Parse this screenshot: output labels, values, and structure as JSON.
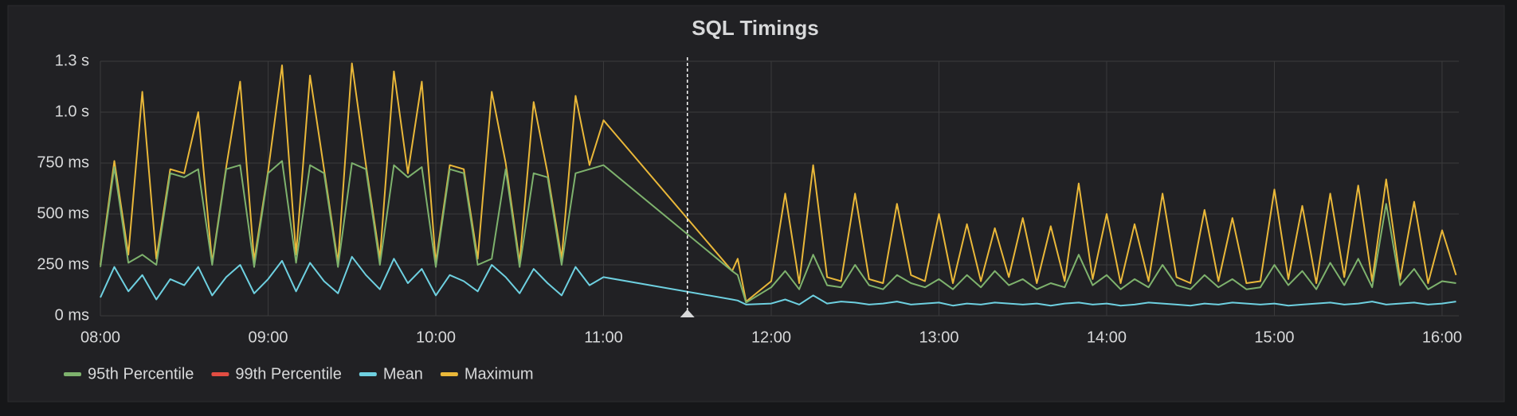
{
  "chart_data": {
    "type": "line",
    "title": "SQL Timings",
    "x": [
      480,
      485,
      490,
      495,
      500,
      505,
      510,
      515,
      520,
      525,
      530,
      535,
      540,
      545,
      550,
      555,
      560,
      565,
      570,
      575,
      580,
      585,
      590,
      595,
      600,
      605,
      610,
      615,
      620,
      625,
      630,
      635,
      640,
      645,
      650,
      655,
      660,
      706,
      708,
      711,
      720,
      725,
      730,
      735,
      740,
      745,
      750,
      755,
      760,
      765,
      770,
      775,
      780,
      785,
      790,
      795,
      800,
      805,
      810,
      815,
      820,
      825,
      830,
      835,
      840,
      845,
      850,
      855,
      860,
      865,
      870,
      875,
      880,
      885,
      890,
      895,
      900,
      905,
      910,
      915,
      920,
      925,
      930,
      935,
      940,
      945,
      950,
      955,
      960,
      965
    ],
    "xlim": [
      480,
      966
    ],
    "xticks": [
      {
        "value": 480,
        "label": "08:00"
      },
      {
        "value": 540,
        "label": "09:00"
      },
      {
        "value": 600,
        "label": "10:00"
      },
      {
        "value": 660,
        "label": "11:00"
      },
      {
        "value": 720,
        "label": "12:00"
      },
      {
        "value": 780,
        "label": "13:00"
      },
      {
        "value": 840,
        "label": "14:00"
      },
      {
        "value": 900,
        "label": "15:00"
      },
      {
        "value": 960,
        "label": "16:00"
      }
    ],
    "ylim": [
      0,
      1250
    ],
    "yticks": [
      {
        "value": 0,
        "label": "0 ms"
      },
      {
        "value": 250,
        "label": "250 ms"
      },
      {
        "value": 500,
        "label": "500 ms"
      },
      {
        "value": 750,
        "label": "750 ms"
      },
      {
        "value": 1000,
        "label": "1.0 s"
      },
      {
        "value": 1250,
        "label": "1.3 s"
      }
    ],
    "grid": true,
    "annotation_x": 690,
    "series": [
      {
        "name": "95th Percentile",
        "color": "#7eb26d",
        "values": [
          240,
          730,
          260,
          300,
          250,
          700,
          680,
          720,
          250,
          720,
          740,
          240,
          700,
          760,
          260,
          740,
          700,
          240,
          750,
          720,
          250,
          740,
          680,
          730,
          240,
          720,
          700,
          250,
          280,
          720,
          240,
          700,
          680,
          250,
          700,
          720,
          740,
          220,
          200,
          65,
          140,
          220,
          130,
          300,
          150,
          140,
          250,
          150,
          130,
          200,
          160,
          140,
          180,
          130,
          200,
          140,
          220,
          150,
          180,
          130,
          160,
          140,
          300,
          150,
          200,
          130,
          180,
          140,
          250,
          150,
          130,
          200,
          140,
          180,
          130,
          140,
          250,
          150,
          220,
          130,
          260,
          150,
          280,
          140,
          550,
          150,
          230,
          130,
          170,
          160
        ]
      },
      {
        "name": "99th Percentile",
        "color": "#e24d42",
        "values": [
          null,
          null,
          null,
          null,
          null,
          null,
          null,
          null,
          null,
          null,
          null,
          null,
          null,
          null,
          null,
          null,
          null,
          null,
          null,
          null,
          null,
          null,
          null,
          null,
          null,
          null,
          null,
          null,
          null,
          null,
          null,
          null,
          null,
          null,
          null,
          null,
          null,
          null,
          null,
          null,
          null,
          null,
          null,
          null,
          null,
          null,
          null,
          null,
          null,
          null,
          null,
          null,
          null,
          null,
          null,
          null,
          null,
          null,
          null,
          null,
          null,
          null,
          null,
          null,
          null,
          null,
          null,
          null,
          null,
          null,
          null,
          null,
          null,
          null,
          null,
          null,
          null,
          null,
          null,
          null,
          null,
          null,
          null,
          null,
          null,
          null,
          null,
          null,
          null,
          null
        ]
      },
      {
        "name": "Mean",
        "color": "#6ed0e0",
        "values": [
          90,
          240,
          120,
          200,
          80,
          180,
          150,
          240,
          100,
          190,
          250,
          110,
          180,
          270,
          120,
          260,
          170,
          110,
          290,
          200,
          130,
          280,
          160,
          230,
          100,
          200,
          170,
          120,
          250,
          190,
          110,
          230,
          160,
          100,
          240,
          150,
          190,
          80,
          75,
          55,
          60,
          80,
          55,
          100,
          60,
          70,
          65,
          55,
          60,
          70,
          55,
          60,
          65,
          50,
          60,
          55,
          65,
          60,
          55,
          60,
          50,
          60,
          65,
          55,
          60,
          50,
          55,
          65,
          60,
          55,
          50,
          60,
          55,
          65,
          60,
          55,
          60,
          50,
          55,
          60,
          65,
          55,
          60,
          70,
          55,
          60,
          65,
          55,
          60,
          70
        ]
      },
      {
        "name": "Maximum",
        "color": "#eab839",
        "values": [
          250,
          760,
          300,
          1100,
          280,
          720,
          700,
          1000,
          260,
          730,
          1150,
          270,
          710,
          1230,
          300,
          1180,
          720,
          260,
          1240,
          740,
          280,
          1200,
          700,
          1150,
          260,
          740,
          720,
          280,
          1100,
          750,
          260,
          1050,
          700,
          280,
          1080,
          740,
          960,
          220,
          280,
          70,
          170,
          600,
          160,
          740,
          190,
          170,
          600,
          180,
          160,
          550,
          200,
          170,
          500,
          160,
          450,
          170,
          430,
          190,
          480,
          160,
          440,
          170,
          650,
          180,
          500,
          160,
          450,
          170,
          600,
          190,
          160,
          520,
          170,
          480,
          160,
          170,
          620,
          180,
          540,
          160,
          600,
          190,
          640,
          170,
          670,
          180,
          560,
          160,
          420,
          200
        ]
      }
    ]
  }
}
